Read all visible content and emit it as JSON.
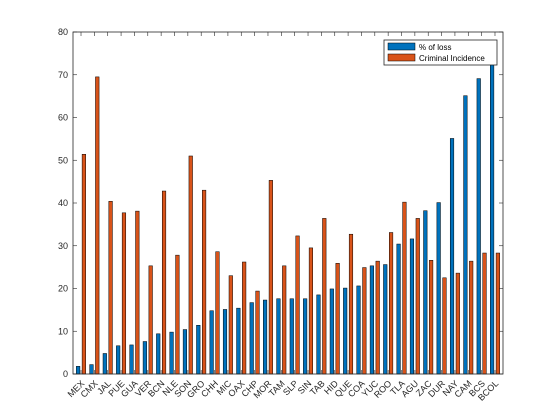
{
  "chart_data": {
    "type": "bar",
    "title": "",
    "xlabel": "",
    "ylabel": "",
    "ylim": [
      0,
      80
    ],
    "yticks": [
      0,
      10,
      20,
      30,
      40,
      50,
      60,
      70,
      80
    ],
    "grid": false,
    "legend_position": "top-right",
    "categories": [
      "MEX",
      "CMX",
      "JAL",
      "PUE",
      "GUA",
      "VER",
      "BCN",
      "NLE",
      "SON",
      "GRO",
      "CHH",
      "MIC",
      "OAX",
      "CHP",
      "MOR",
      "TAM",
      "SLP",
      "SIN",
      "TAB",
      "HID",
      "QUE",
      "COA",
      "YUC",
      "ROO",
      "TLA",
      "AGU",
      "ZAC",
      "DUR",
      "NAY",
      "CAM",
      "BCS",
      "BCOL"
    ],
    "series": [
      {
        "name": "% of loss",
        "color": "#0072BD",
        "values": [
          1.8,
          2.2,
          4.8,
          6.6,
          6.8,
          7.6,
          9.4,
          9.8,
          10.4,
          11.4,
          14.8,
          15.1,
          15.4,
          16.7,
          17.3,
          17.6,
          17.6,
          17.6,
          18.5,
          19.9,
          20.1,
          20.6,
          25.3,
          25.6,
          30.4,
          31.6,
          38.2,
          40.1,
          55.1,
          65.1,
          69.1,
          72.4
        ]
      },
      {
        "name": "Criminal Incidence",
        "color": "#D95319",
        "values": [
          51.4,
          69.5,
          40.4,
          37.7,
          38.1,
          25.3,
          42.8,
          27.8,
          51.0,
          43.0,
          28.6,
          23.0,
          26.2,
          19.4,
          45.3,
          25.3,
          32.3,
          29.5,
          36.4,
          25.9,
          32.7,
          24.9,
          26.4,
          33.1,
          40.2,
          36.4,
          26.6,
          22.5,
          23.6,
          26.4,
          28.3,
          28.3
        ]
      }
    ]
  }
}
